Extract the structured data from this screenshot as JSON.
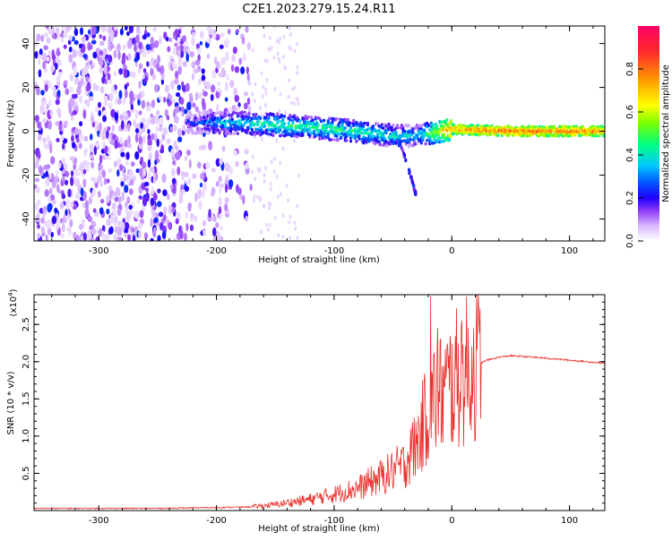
{
  "title": "C2E1.2023.279.15.24.R11",
  "colors": {
    "signal": "#7a1cf2",
    "snr_line": "#e8302b",
    "axis": "#000000",
    "background": "#ffffff",
    "colormap": [
      "#ffffff",
      "#d9b8ff",
      "#8f3cf5",
      "#5b00e0",
      "#0000ff",
      "#00c8ff",
      "#00ff80",
      "#7cff00",
      "#ffff00",
      "#ff9900",
      "#ff2a2a",
      "#ff0066"
    ]
  },
  "chart_data": [
    {
      "type": "heatmap",
      "title": "",
      "xlabel": "Height of straight line (km)",
      "ylabel": "Frequency (Hz)",
      "xlim": [
        -355,
        130
      ],
      "ylim": [
        -50,
        48
      ],
      "xticks": [
        -300,
        -200,
        -100,
        0,
        100
      ],
      "yticks": [
        -40,
        -20,
        0,
        20,
        40
      ],
      "grid": false,
      "colorbar": {
        "label": "Normalized spectral amplitude",
        "range": [
          0,
          1
        ],
        "ticks": [
          0.0,
          0.2,
          0.4,
          0.6,
          0.8
        ]
      },
      "features": [
        {
          "name": "scattered weak returns",
          "x_range": [
            -355,
            -170
          ],
          "y_range": [
            -50,
            48
          ],
          "level": 0.15
        },
        {
          "name": "signal band",
          "x": [
            -225,
            -200,
            -150,
            -100,
            -50,
            -30,
            0,
            50,
            100,
            130
          ],
          "y_center": [
            4,
            4,
            3,
            1,
            -2,
            -2,
            1,
            0,
            0,
            0
          ],
          "level": [
            0.2,
            0.35,
            0.45,
            0.45,
            0.4,
            0.35,
            0.75,
            0.8,
            0.8,
            0.75
          ]
        },
        {
          "name": "downward trace",
          "x": [
            -45,
            -40,
            -35,
            -30
          ],
          "y": [
            -5,
            -12,
            -20,
            -30
          ],
          "level": 0.25
        }
      ]
    },
    {
      "type": "line",
      "title": "",
      "xlabel": "Height of straight line (km)",
      "ylabel": "SNR (10 * v/v)",
      "y_multiplier": "(x10^4)",
      "xlim": [
        -355,
        130
      ],
      "ylim": [
        0,
        2.9
      ],
      "xticks": [
        -300,
        -200,
        -100,
        0,
        100
      ],
      "yticks": [
        0.5,
        1.0,
        1.5,
        2.0,
        2.5
      ],
      "grid": false,
      "series": [
        {
          "x": [
            -355,
            -300,
            -250,
            -200,
            -170,
            -150,
            -120,
            -100,
            -80,
            -60,
            -40,
            -30,
            -20,
            -15,
            -10,
            0,
            10,
            20,
            30,
            40,
            50,
            70,
            100,
            130
          ],
          "y": [
            0.03,
            0.03,
            0.03,
            0.04,
            0.05,
            0.08,
            0.15,
            0.22,
            0.3,
            0.45,
            0.62,
            0.9,
            1.35,
            1.5,
            1.55,
            1.7,
            1.85,
            1.95,
            2.02,
            2.06,
            2.08,
            2.06,
            2.02,
            1.98
          ],
          "spikes": [
            [
              -18,
              2.88
            ],
            [
              -12,
              2.45
            ],
            [
              8,
              2.48
            ],
            [
              -35,
              1.1
            ],
            [
              -25,
              1.75
            ]
          ]
        }
      ]
    }
  ]
}
